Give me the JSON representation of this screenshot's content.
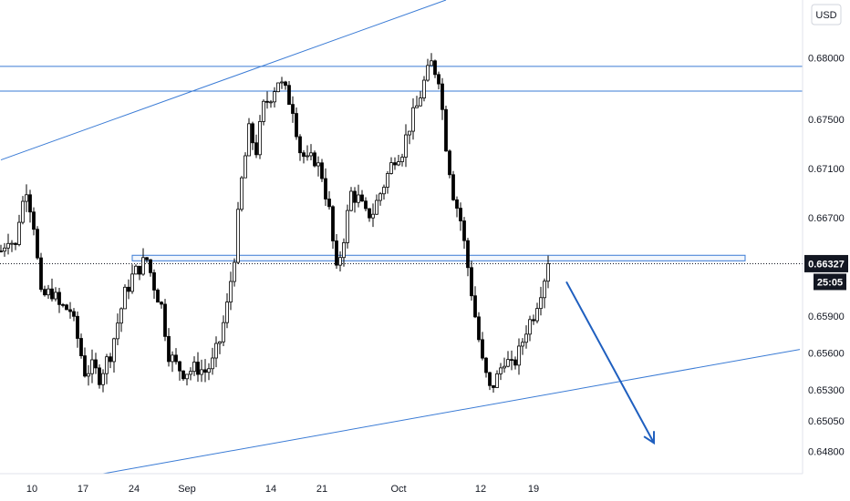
{
  "chart_data": {
    "type": "candlestick",
    "instrument_currency": "USD",
    "y_axis": {
      "ticks": [
        "0.68000",
        "0.67500",
        "0.67100",
        "0.66700",
        "0.66327",
        "0.65900",
        "0.65600",
        "0.65300",
        "0.65050",
        "0.64800"
      ],
      "tick_values": [
        0.68,
        0.675,
        0.671,
        0.667,
        0.66327,
        0.659,
        0.656,
        0.653,
        0.6505,
        0.648
      ],
      "ylim": [
        0.6462,
        0.6847
      ]
    },
    "x_axis": {
      "ticks": [
        "10",
        "17",
        "24",
        "Sep",
        "14",
        "21",
        "Oct",
        "12",
        "19"
      ],
      "tick_index": [
        8.5,
        22.5,
        36.5,
        51,
        74,
        88,
        109,
        131.5,
        146
      ]
    },
    "current_price": {
      "label": "0.66327",
      "value": 0.66327
    },
    "countdown": "25:05",
    "colors": {
      "bull": "#ffffff",
      "bear": "#000000",
      "wick": "#000000",
      "trendline": "#3a7bd5",
      "arrow": "#1f5fbf",
      "price_tag": "#131722"
    },
    "price_points": [
      [
        0,
        0.6643
      ],
      [
        2,
        0.6655
      ],
      [
        4,
        0.6646
      ],
      [
        5,
        0.667
      ],
      [
        7,
        0.6695
      ],
      [
        9,
        0.6665
      ],
      [
        11,
        0.6605
      ],
      [
        14,
        0.661
      ],
      [
        16,
        0.6598
      ],
      [
        19,
        0.6595
      ],
      [
        21,
        0.6572
      ],
      [
        23,
        0.6545
      ],
      [
        25,
        0.6548
      ],
      [
        27,
        0.6541
      ],
      [
        30,
        0.656
      ],
      [
        32,
        0.6585
      ],
      [
        34,
        0.6608
      ],
      [
        36,
        0.6622
      ],
      [
        38,
        0.663
      ],
      [
        40,
        0.6636
      ],
      [
        42,
        0.6615
      ],
      [
        44,
        0.6598
      ],
      [
        46,
        0.656
      ],
      [
        48,
        0.655
      ],
      [
        50,
        0.6545
      ],
      [
        52,
        0.6546
      ],
      [
        54,
        0.6548
      ],
      [
        56,
        0.6545
      ],
      [
        58,
        0.6552
      ],
      [
        60,
        0.657
      ],
      [
        62,
        0.6598
      ],
      [
        64,
        0.664
      ],
      [
        66,
        0.67
      ],
      [
        68,
        0.674
      ],
      [
        70,
        0.6725
      ],
      [
        72,
        0.676
      ],
      [
        74,
        0.677
      ],
      [
        76,
        0.6782
      ],
      [
        78,
        0.6772
      ],
      [
        80,
        0.676
      ],
      [
        82,
        0.6725
      ],
      [
        84,
        0.6715
      ],
      [
        86,
        0.6718
      ],
      [
        88,
        0.6705
      ],
      [
        90,
        0.6675
      ],
      [
        92,
        0.6625
      ],
      [
        94,
        0.6655
      ],
      [
        96,
        0.669
      ],
      [
        98,
        0.6685
      ],
      [
        100,
        0.6672
      ],
      [
        102,
        0.6675
      ],
      [
        104,
        0.669
      ],
      [
        106,
        0.6705
      ],
      [
        108,
        0.672
      ],
      [
        110,
        0.6725
      ],
      [
        112,
        0.6745
      ],
      [
        114,
        0.676
      ],
      [
        116,
        0.678
      ],
      [
        118,
        0.6795
      ],
      [
        120,
        0.6785
      ],
      [
        122,
        0.673
      ],
      [
        124,
        0.669
      ],
      [
        126,
        0.6668
      ],
      [
        128,
        0.663
      ],
      [
        130,
        0.659
      ],
      [
        132,
        0.6552
      ],
      [
        134,
        0.653
      ],
      [
        136,
        0.654
      ],
      [
        138,
        0.6556
      ],
      [
        140,
        0.6548
      ],
      [
        142,
        0.656
      ],
      [
        144,
        0.658
      ],
      [
        146,
        0.6592
      ],
      [
        148,
        0.6612
      ],
      [
        150,
        0.6632
      ]
    ],
    "annotations": [
      {
        "type": "trendline",
        "name": "upper-channel-line",
        "from": [
          0,
          0.6717
        ],
        "to": [
          122,
          0.6847
        ]
      },
      {
        "type": "trendline",
        "name": "lower-channel-line",
        "from": [
          28,
          0.6462
        ],
        "to": [
          219,
          0.6563
        ]
      },
      {
        "type": "hline",
        "name": "resistance-line-high",
        "value": 0.6793
      },
      {
        "type": "hline",
        "name": "resistance-line-low",
        "value": 0.6773
      },
      {
        "type": "zone",
        "name": "support-resistance-zone",
        "from_index": 36,
        "to_index": 204,
        "top": 0.66395,
        "bottom": 0.6635
      },
      {
        "type": "hline",
        "name": "current-price-line",
        "value": 0.66327,
        "style": "dotted"
      },
      {
        "type": "arrow",
        "name": "bearish-projection-arrow",
        "from": [
          155,
          0.6618
        ],
        "to": [
          179,
          0.6487
        ]
      }
    ]
  }
}
